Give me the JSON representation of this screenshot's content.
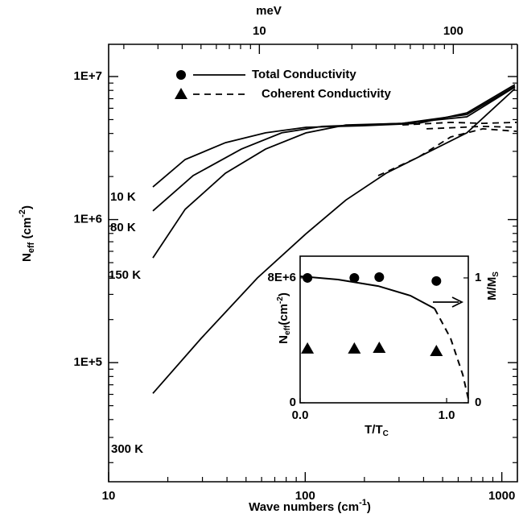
{
  "chart_data": {
    "type": "line",
    "xlabel": {
      "main": "Wave numbers",
      "rest": " (cm",
      "sup": "-1",
      "end": ")"
    },
    "x2label": "meV",
    "ylabel": {
      "main": "N",
      "sub": "eff",
      "rest": " (cm",
      "sup": "-2",
      "end": ")"
    },
    "xscale": "log",
    "yscale": "log",
    "xlim": [
      10,
      1200
    ],
    "xticks": [
      10,
      100,
      1000
    ],
    "x2lim": [
      1.67,
      214
    ],
    "x2ticks": [
      10,
      100
    ],
    "ylim": [
      14700,
      16800000
    ],
    "yticks": [
      {
        "value": 100000,
        "label": "1E+5"
      },
      {
        "value": 1000000,
        "label": "1E+6"
      },
      {
        "value": 10000000,
        "label": "1E+7"
      }
    ],
    "legend": [
      {
        "label": "Total Conductivity",
        "marker": "circle",
        "dash": "solid"
      },
      {
        "label": "Coherent Conductivity",
        "marker": "triangle",
        "dash": "dashed"
      }
    ],
    "series": [
      {
        "name": "10 K",
        "dash": "solid",
        "color": "#000000",
        "x": [
          16.8,
          24.5,
          39.3,
          62.8,
          101,
          195,
          376,
          664,
          1167
        ],
        "values": [
          1690000,
          2630000,
          3450000,
          4040000,
          4420000,
          4530000,
          4710000,
          5570000,
          8790000
        ]
      },
      {
        "name": "80 K",
        "dash": "solid",
        "color": "#000000",
        "x": [
          16.8,
          26.9,
          47.3,
          75.9,
          122,
          312,
          664,
          1167
        ],
        "values": [
          1150000,
          2030000,
          3110000,
          4040000,
          4480000,
          4710000,
          5430000,
          8550000
        ]
      },
      {
        "name": "150 K",
        "dash": "solid",
        "color": "#000000",
        "x": [
          16.8,
          24.5,
          39.3,
          62.8,
          101,
          161,
          312,
          664,
          1167
        ],
        "values": [
          540000,
          1180000,
          2110000,
          3110000,
          4040000,
          4590000,
          4710000,
          5230000,
          8450000
        ]
      },
      {
        "name": "300 K",
        "dash": "solid",
        "color": "#000000",
        "x": [
          16.8,
          29.6,
          57.1,
          101,
          161,
          258,
          414,
          664,
          1167
        ],
        "values": [
          61000,
          148000,
          391000,
          797000,
          1370000,
          2110000,
          2920000,
          4040000,
          8230000
        ]
      },
      {
        "dash": "dashed",
        "color": "#000000",
        "x": [
          312,
          550,
          800,
          1190
        ],
        "values": [
          4590000,
          4780000,
          4710000,
          4780000
        ]
      },
      {
        "dash": "dashed",
        "color": "#000000",
        "x": [
          414,
          800,
          1190
        ],
        "values": [
          4310000,
          4480000,
          4420000
        ]
      },
      {
        "dash": "dashed",
        "color": "#000000",
        "x": [
          235,
          376,
          550,
          800,
          1190
        ],
        "values": [
          2030000,
          2730000,
          3780000,
          4310000,
          4140000
        ]
      }
    ],
    "inset": {
      "type": "scatter",
      "xlabel": {
        "main": "T/T",
        "sub": "C"
      },
      "ylabel": {
        "main": "N",
        "sub": "eff",
        "rest": "(cm",
        "sup": "-2",
        "end": ")"
      },
      "y2label": {
        "main": "M/M",
        "sub": "S"
      },
      "xlim": [
        0,
        1.148
      ],
      "xticks": [
        {
          "value": 0,
          "label": "0.0"
        },
        {
          "value": 1,
          "label": "1.0"
        }
      ],
      "ylim": [
        0,
        9390000
      ],
      "yticks": [
        0,
        {
          "value": 8000000,
          "label": "8E+6"
        }
      ],
      "y2lim": [
        0,
        1.174
      ],
      "y2ticks": [
        0,
        1
      ],
      "series": [
        {
          "marker": "circle",
          "color": "#000000",
          "x": [
            0.05,
            0.37,
            0.54,
            0.93
          ],
          "values": [
            8000000,
            8000000,
            8050000,
            7800000
          ]
        },
        {
          "marker": "triangle",
          "color": "#000000",
          "x": [
            0.05,
            0.37,
            0.54,
            0.93
          ],
          "values": [
            3460000,
            3460000,
            3510000,
            3300000
          ]
        },
        {
          "axis": "y2",
          "dash": "solid",
          "color": "#000000",
          "x": [
            0,
            0.258,
            0.533,
            0.753,
            0.918
          ],
          "values": [
            1.013,
            0.987,
            0.935,
            0.858,
            0.755
          ]
        },
        {
          "axis": "y2",
          "dash": "dashed",
          "color": "#000000",
          "x": [
            0.918,
            1.027,
            1.11,
            1.148
          ],
          "values": [
            0.755,
            0.516,
            0.226,
            0.032
          ]
        }
      ]
    }
  }
}
